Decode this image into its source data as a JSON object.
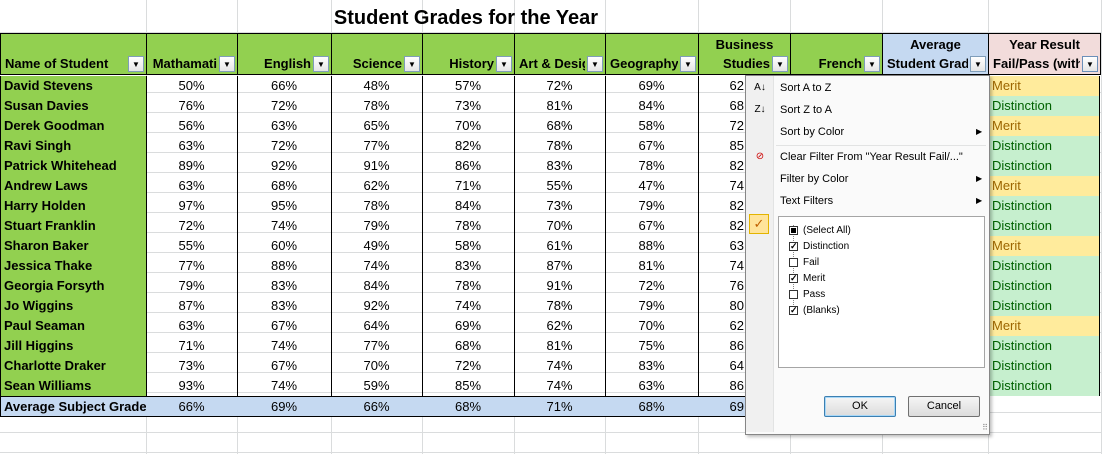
{
  "sheet": {
    "title": "Student Grades for the Year",
    "headers": {
      "name": "Name of Student",
      "cols": [
        "Mathamatics",
        "English",
        "Science",
        "History",
        "Art & Design",
        "Geography",
        "Business Studies",
        "French"
      ],
      "cols_display": [
        "Mathamati",
        "English",
        "Science",
        "History",
        "Art & Desig",
        "Geography",
        "Business",
        "French"
      ],
      "business_line2": "Studies",
      "avg_line1": "Average",
      "avg_line2": "Student Grad",
      "result_line1": "Year Result",
      "result_line2": "Fail/Pass (with"
    },
    "rows": [
      {
        "name": "David Stevens",
        "scores": [
          "50%",
          "66%",
          "48%",
          "57%",
          "72%",
          "69%",
          "62"
        ],
        "result": "Merit"
      },
      {
        "name": "Susan Davies",
        "scores": [
          "76%",
          "72%",
          "78%",
          "73%",
          "81%",
          "84%",
          "68"
        ],
        "result": "Distinction"
      },
      {
        "name": "Derek Goodman",
        "scores": [
          "56%",
          "63%",
          "65%",
          "70%",
          "68%",
          "58%",
          "72"
        ],
        "result": "Merit"
      },
      {
        "name": "Ravi Singh",
        "scores": [
          "63%",
          "72%",
          "77%",
          "82%",
          "78%",
          "67%",
          "85"
        ],
        "result": "Distinction"
      },
      {
        "name": "Patrick Whitehead",
        "scores": [
          "89%",
          "92%",
          "91%",
          "86%",
          "83%",
          "78%",
          "82"
        ],
        "result": "Distinction"
      },
      {
        "name": "Andrew Laws",
        "scores": [
          "63%",
          "68%",
          "62%",
          "71%",
          "55%",
          "47%",
          "74"
        ],
        "result": "Merit"
      },
      {
        "name": "Harry Holden",
        "scores": [
          "97%",
          "95%",
          "78%",
          "84%",
          "73%",
          "79%",
          "82"
        ],
        "result": "Distinction"
      },
      {
        "name": "Stuart Franklin",
        "scores": [
          "72%",
          "74%",
          "79%",
          "78%",
          "70%",
          "67%",
          "82"
        ],
        "result": "Distinction"
      },
      {
        "name": "Sharon Baker",
        "scores": [
          "55%",
          "60%",
          "49%",
          "58%",
          "61%",
          "88%",
          "63"
        ],
        "result": "Merit"
      },
      {
        "name": "Jessica Thake",
        "scores": [
          "77%",
          "88%",
          "74%",
          "83%",
          "87%",
          "81%",
          "74"
        ],
        "result": "Distinction"
      },
      {
        "name": "Georgia Forsyth",
        "scores": [
          "79%",
          "83%",
          "84%",
          "78%",
          "91%",
          "72%",
          "76"
        ],
        "result": "Distinction"
      },
      {
        "name": "Jo Wiggins",
        "scores": [
          "87%",
          "83%",
          "92%",
          "74%",
          "78%",
          "79%",
          "80"
        ],
        "result": "Distinction"
      },
      {
        "name": "Paul Seaman",
        "scores": [
          "63%",
          "67%",
          "64%",
          "69%",
          "62%",
          "70%",
          "62"
        ],
        "result": "Merit"
      },
      {
        "name": "Jill Higgins",
        "scores": [
          "71%",
          "74%",
          "77%",
          "68%",
          "81%",
          "75%",
          "86"
        ],
        "result": "Distinction"
      },
      {
        "name": "Charlotte Draker",
        "scores": [
          "73%",
          "67%",
          "70%",
          "72%",
          "74%",
          "83%",
          "64"
        ],
        "result": "Distinction"
      },
      {
        "name": "Sean Williams",
        "scores": [
          "93%",
          "74%",
          "59%",
          "85%",
          "74%",
          "63%",
          "86"
        ],
        "result": "Distinction"
      }
    ],
    "average_row": {
      "name": "Average Subject Grade",
      "scores": [
        "66%",
        "69%",
        "66%",
        "68%",
        "71%",
        "68%",
        "69"
      ]
    }
  },
  "filter_menu": {
    "sort_az": "Sort A to Z",
    "sort_za": "Sort Z to A",
    "sort_by_color": "Sort by Color",
    "clear_filter": "Clear Filter From \"Year Result Fail/...\"",
    "filter_by_color": "Filter by Color",
    "text_filters": "Text Filters",
    "items": [
      {
        "label": "(Select All)",
        "state": "partial"
      },
      {
        "label": "Distinction",
        "state": "checked"
      },
      {
        "label": "Fail",
        "state": "unchecked"
      },
      {
        "label": "Merit",
        "state": "checked"
      },
      {
        "label": "Pass",
        "state": "unchecked"
      },
      {
        "label": "(Blanks)",
        "state": "checked"
      }
    ],
    "ok_label": "OK",
    "cancel_label": "Cancel"
  },
  "colors": {
    "header_green": "#92d050",
    "avg_blue": "#c5d9f1",
    "result_pink": "#f2dcdb",
    "merit_fill": "#ffeb9c",
    "distinction_fill": "#c6efce"
  }
}
